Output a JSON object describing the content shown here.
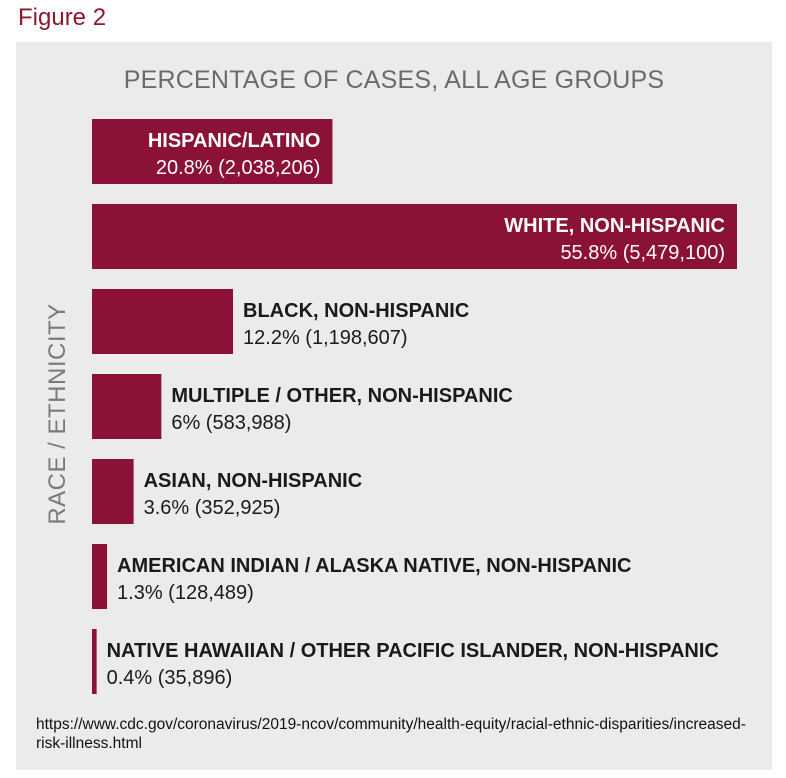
{
  "figure_label": "Figure 2",
  "source_text": "https://www.cdc.gov/coronavirus/2019-ncov/community/health-equity/racial-ethnic-disparities/increased-risk-illness.html",
  "colors": {
    "bar": "#8b1236",
    "panel_bg": "#ebebeb",
    "label_on_bar": "#ffffff",
    "label_off_bar": "#1a1a1a"
  },
  "chart_data": {
    "type": "bar",
    "orientation": "horizontal",
    "title": "PERCENTAGE OF CASES, ALL AGE GROUPS",
    "ylabel": "RACE / ETHNICITY",
    "xlabel": "",
    "xlim": [
      0,
      55.8
    ],
    "grid": false,
    "categories": [
      "HISPANIC/LATINO",
      "WHITE, NON-HISPANIC",
      "BLACK, NON-HISPANIC",
      "MULTIPLE / OTHER, NON-HISPANIC",
      "ASIAN, NON-HISPANIC",
      "AMERICAN INDIAN / ALASKA NATIVE, NON-HISPANIC",
      "NATIVE HAWAIIAN / OTHER PACIFIC ISLANDER, NON-HISPANIC"
    ],
    "values": [
      20.8,
      55.8,
      12.2,
      6,
      3.6,
      1.3,
      0.4
    ],
    "value_labels": [
      "20.8% (2,038,206)",
      "55.8% (5,479,100)",
      "12.2% (1,198,607)",
      "6% (583,988)",
      "3.6% (352,925)",
      "1.3% (128,489)",
      "0.4% (35,896)"
    ]
  }
}
